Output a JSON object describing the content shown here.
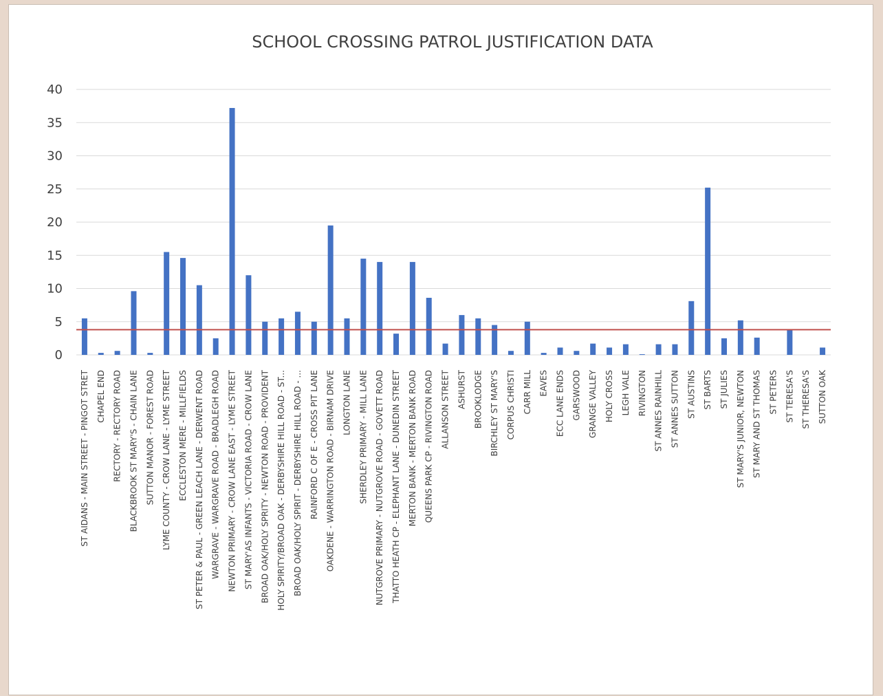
{
  "chart_data": {
    "type": "bar",
    "title": "SCHOOL CROSSING PATROL JUSTIFICATION DATA",
    "xlabel": "",
    "ylabel": "",
    "ylim": [
      0,
      40
    ],
    "yticks": [
      "0",
      "5",
      "10",
      "15",
      "20",
      "25",
      "30",
      "35",
      "40"
    ],
    "grid": true,
    "bar_color": "#4472c4",
    "threshold_line": {
      "value": 3.8,
      "color": "#c0504d"
    },
    "categories": [
      "ST AIDANS - MAIN STREET - PINGOT STRET",
      "CHAPEL END",
      "RECTORY - RECTORY ROAD",
      "BLACKBROOK ST MARY'S - CHAIN LANE",
      "SUTTON MANOR - FOREST ROAD",
      "LYME COUNTY - CROW LANE - LYME STREET",
      "ECCLESTON MERE - MILLFIELDS",
      "ST PETER & PAUL - GREEN LEACH LANE - DERWENT ROAD",
      "WARGRAVE - WARGRAVE ROAD - BRADLEGH ROAD",
      "NEWTON PRIMARY - CROW LANE EAST - LYME STREET",
      "ST MARY'AS INFANTS - VICTORIA ROAD - CROW LANE",
      "BROAD OAK/HOLY SPRITY - NEWTON ROAD - PROVIDENT",
      "HOLY SPIRITY/BROAD OAK - DERBYSHIRE HILL ROAD - ST...",
      "BROAD OAK/HOLY SPIRIT - DERBYSHIRE HILL ROAD - ...",
      "RAINFORD C OF E - CROSS PIT LANE",
      "OAKDENE - WARRINGTON ROAD - BIRNAM DRIVE",
      "LONGTON LANE",
      "SHERDLEY PRIMARY - MILL LANE",
      "NUTGROVE PRIMARY - NUTGROVE ROAD - GOVETT ROAD",
      "THATTO HEATH CP - ELEPHANT LANE - DUNEDIN STREET",
      "MERTON BANK - MERTON BANK ROAD",
      "QUEENS PARK CP - RIVINGTON ROAD",
      "ALLANSON STREET",
      "ASHURST",
      "BROOKLODGE",
      "BIRCHLEY ST MARY'S",
      "CORPUS CHRISTI",
      "CARR MILL",
      "EAVES",
      "ECC LANE ENDS",
      "GARSWOOD",
      "GRANGE VALLEY",
      "HOLY CROSS",
      "LEGH VALE",
      "RIVINGTON",
      "ST ANNES RAINHILL",
      "ST ANNES SUTTON",
      "ST AUSTINS",
      "ST BARTS",
      "ST JULIES",
      "ST MARY'S JUNIOR, NEWTON",
      "ST MARY AND ST THOMAS",
      "ST PETERS",
      "ST TERESA'S",
      "ST THERESA'S",
      "SUTTON OAK"
    ],
    "values": [
      5.5,
      0.3,
      0.6,
      9.6,
      0.3,
      15.5,
      14.6,
      10.5,
      2.5,
      37.2,
      12.0,
      5.0,
      5.5,
      6.5,
      5.0,
      19.5,
      5.5,
      14.5,
      14.0,
      3.2,
      14.0,
      8.6,
      1.7,
      6.0,
      5.5,
      4.5,
      0.6,
      5.0,
      0.3,
      1.1,
      0.6,
      1.7,
      1.1,
      1.6,
      0.1,
      1.6,
      1.6,
      8.1,
      25.2,
      2.5,
      5.2,
      2.6,
      0,
      3.8,
      0,
      1.1
    ]
  }
}
